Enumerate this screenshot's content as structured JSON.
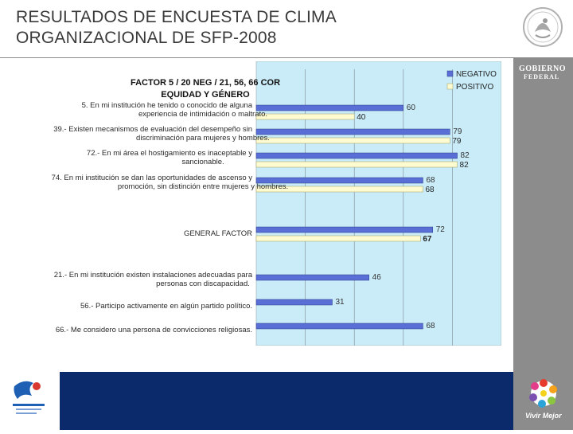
{
  "header": {
    "title_line1": "RESULTADOS DE ENCUESTA DE CLIMA",
    "title_line2": "ORGANIZACIONAL DE SFP-2008"
  },
  "sidebar": {
    "brand_line1": "GOBIERNO",
    "brand_line2": "FEDERAL",
    "footer_brand": "Vivir Mejor"
  },
  "colors": {
    "negativo": "#5a6fd6",
    "positivo": "#fffbd0",
    "plot_bg": "#c9ecf8",
    "footer": "#0a2a6b",
    "panel": "#8c8c8c"
  },
  "chart_data": {
    "type": "bar",
    "orientation": "horizontal",
    "title_line1": "FACTOR  5  /  20   NEG  /  21, 56, 66   COR",
    "title_line2": "EQUIDAD Y GÉNERO",
    "legend": [
      "NEGATIVO",
      "POSITIVO"
    ],
    "legend_position": "top-right",
    "xlim": [
      0,
      100
    ],
    "grid": true,
    "groups": [
      {
        "label_lines": [
          "5.   En mi institución he tenido o conocido de alguna",
          "experiencia de intimidación o maltrato."
        ],
        "negativo": 60,
        "positivo": 40
      },
      {
        "label_lines": [
          "39.-  Existen mecanismos de evaluación del desempeño sin",
          "discriminación para mujeres y hombres."
        ],
        "negativo": 79,
        "positivo": 79
      },
      {
        "label_lines": [
          "72.-  En mi área el hostigamiento es inaceptable y",
          "sancionable."
        ],
        "negativo": 82,
        "positivo": 82
      },
      {
        "label_lines": [
          "74.   En mi institución se dan las oportunidades de ascenso y",
          "promoción, sin distinción entre mujeres y hombres."
        ],
        "negativo": 68,
        "positivo": 68
      },
      {
        "label_lines": [
          "GENERAL FACTOR"
        ],
        "negativo": 72,
        "positivo": 67
      },
      {
        "label_lines": [
          "21.-  En mi institución existen instalaciones adecuadas para",
          "personas con discapacidad."
        ],
        "negativo": 46,
        "positivo": null
      },
      {
        "label_lines": [
          "56.-  Participo activamente en algún partido político."
        ],
        "negativo": 31,
        "positivo": null
      },
      {
        "label_lines": [
          "66.-  Me considero una persona de convicciones religiosas."
        ],
        "negativo": 68,
        "positivo": null
      }
    ]
  }
}
